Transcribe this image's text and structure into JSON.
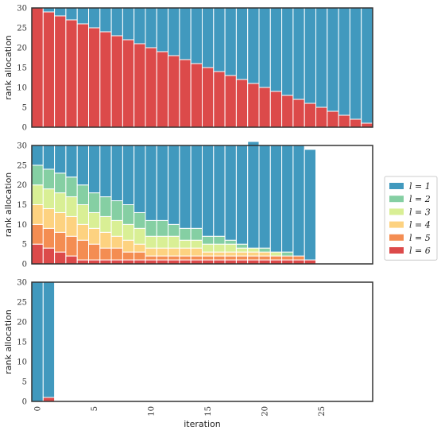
{
  "chart_data": [
    {
      "type": "bar",
      "stacked": true,
      "panel": "top",
      "x": [
        0,
        1,
        2,
        3,
        4,
        5,
        6,
        7,
        8,
        9,
        10,
        11,
        12,
        13,
        14,
        15,
        16,
        17,
        18,
        19,
        20,
        21,
        22,
        23,
        24,
        25,
        26,
        27,
        28,
        29
      ],
      "series": [
        {
          "name": "l = 6",
          "values": [
            30,
            29,
            28,
            27,
            26,
            25,
            24,
            23,
            22,
            21,
            20,
            19,
            18,
            17,
            16,
            15,
            14,
            13,
            12,
            11,
            10,
            9,
            8,
            7,
            6,
            5,
            4,
            3,
            2,
            1
          ]
        },
        {
          "name": "l = 1",
          "values": [
            0,
            1,
            2,
            3,
            4,
            5,
            6,
            7,
            8,
            9,
            10,
            11,
            12,
            13,
            14,
            15,
            16,
            17,
            18,
            19,
            20,
            21,
            22,
            23,
            24,
            25,
            26,
            27,
            28,
            29
          ]
        }
      ],
      "ylabel": "rank allocation",
      "ylim": [
        0,
        30
      ],
      "yticks": [
        0,
        5,
        10,
        15,
        20,
        25,
        30
      ]
    },
    {
      "type": "bar",
      "stacked": true,
      "panel": "middle",
      "x": [
        0,
        1,
        2,
        3,
        4,
        5,
        6,
        7,
        8,
        9,
        10,
        11,
        12,
        13,
        14,
        15,
        16,
        17,
        18,
        19,
        20,
        21,
        22,
        23,
        24
      ],
      "series": [
        {
          "name": "l = 6",
          "values": [
            5,
            4,
            3,
            2,
            1,
            1,
            1,
            1,
            1,
            1,
            1,
            1,
            1,
            1,
            1,
            1,
            1,
            1,
            1,
            1,
            1,
            1,
            1,
            1,
            1
          ]
        },
        {
          "name": "l = 5",
          "values": [
            5,
            5,
            5,
            5,
            5,
            4,
            3,
            3,
            2,
            2,
            1,
            1,
            1,
            1,
            1,
            1,
            1,
            1,
            1,
            1,
            1,
            1,
            1,
            1,
            0
          ]
        },
        {
          "name": "l = 4",
          "values": [
            5,
            5,
            5,
            5,
            4,
            4,
            4,
            3,
            3,
            2,
            2,
            2,
            2,
            2,
            2,
            1,
            1,
            1,
            1,
            1,
            1,
            0,
            0,
            0,
            0
          ]
        },
        {
          "name": "l = 3",
          "values": [
            5,
            5,
            5,
            5,
            5,
            4,
            4,
            4,
            4,
            4,
            3,
            3,
            3,
            2,
            2,
            2,
            2,
            2,
            1,
            1,
            0,
            1,
            0,
            0,
            0
          ]
        },
        {
          "name": "l = 2",
          "values": [
            5,
            5,
            5,
            5,
            5,
            5,
            5,
            5,
            5,
            4,
            4,
            4,
            3,
            3,
            3,
            2,
            2,
            1,
            1,
            0,
            1,
            0,
            1,
            0,
            0
          ]
        },
        {
          "name": "l = 1",
          "values": [
            5,
            6,
            7,
            8,
            10,
            12,
            13,
            14,
            15,
            17,
            19,
            19,
            20,
            21,
            21,
            23,
            23,
            24,
            25,
            27,
            26,
            27,
            27,
            28,
            28
          ]
        }
      ],
      "ylabel": "rank allocation",
      "ylim": [
        0,
        30
      ],
      "yticks": [
        0,
        5,
        10,
        15,
        20,
        25,
        30
      ]
    },
    {
      "type": "bar",
      "stacked": true,
      "panel": "bottom",
      "x": [
        0,
        1
      ],
      "series": [
        {
          "name": "l = 6",
          "values": [
            0,
            1
          ]
        },
        {
          "name": "l = 1",
          "values": [
            30,
            29
          ]
        }
      ],
      "xlabel": "iteration",
      "ylabel": "rank allocation",
      "ylim": [
        0,
        30
      ],
      "yticks": [
        0,
        5,
        10,
        15,
        20,
        25,
        30
      ],
      "xticks": [
        0,
        5,
        10,
        15,
        20,
        25
      ],
      "xlim": [
        -0.5,
        29.5
      ]
    }
  ],
  "legend": {
    "placement": "right",
    "items": [
      {
        "label": "l = 1",
        "color": "#4199be"
      },
      {
        "label": "l = 2",
        "color": "#85cfa3"
      },
      {
        "label": "l = 3",
        "color": "#d9ef95"
      },
      {
        "label": "l = 4",
        "color": "#fdd280"
      },
      {
        "label": "l = 5",
        "color": "#f48d52"
      },
      {
        "label": "l = 6",
        "color": "#dc4a4a"
      }
    ]
  },
  "colors": {
    "l1": "#4199be",
    "l2": "#85cfa3",
    "l3": "#d9ef95",
    "l4": "#fdd280",
    "l5": "#f48d52",
    "l6": "#dc4a4a"
  }
}
